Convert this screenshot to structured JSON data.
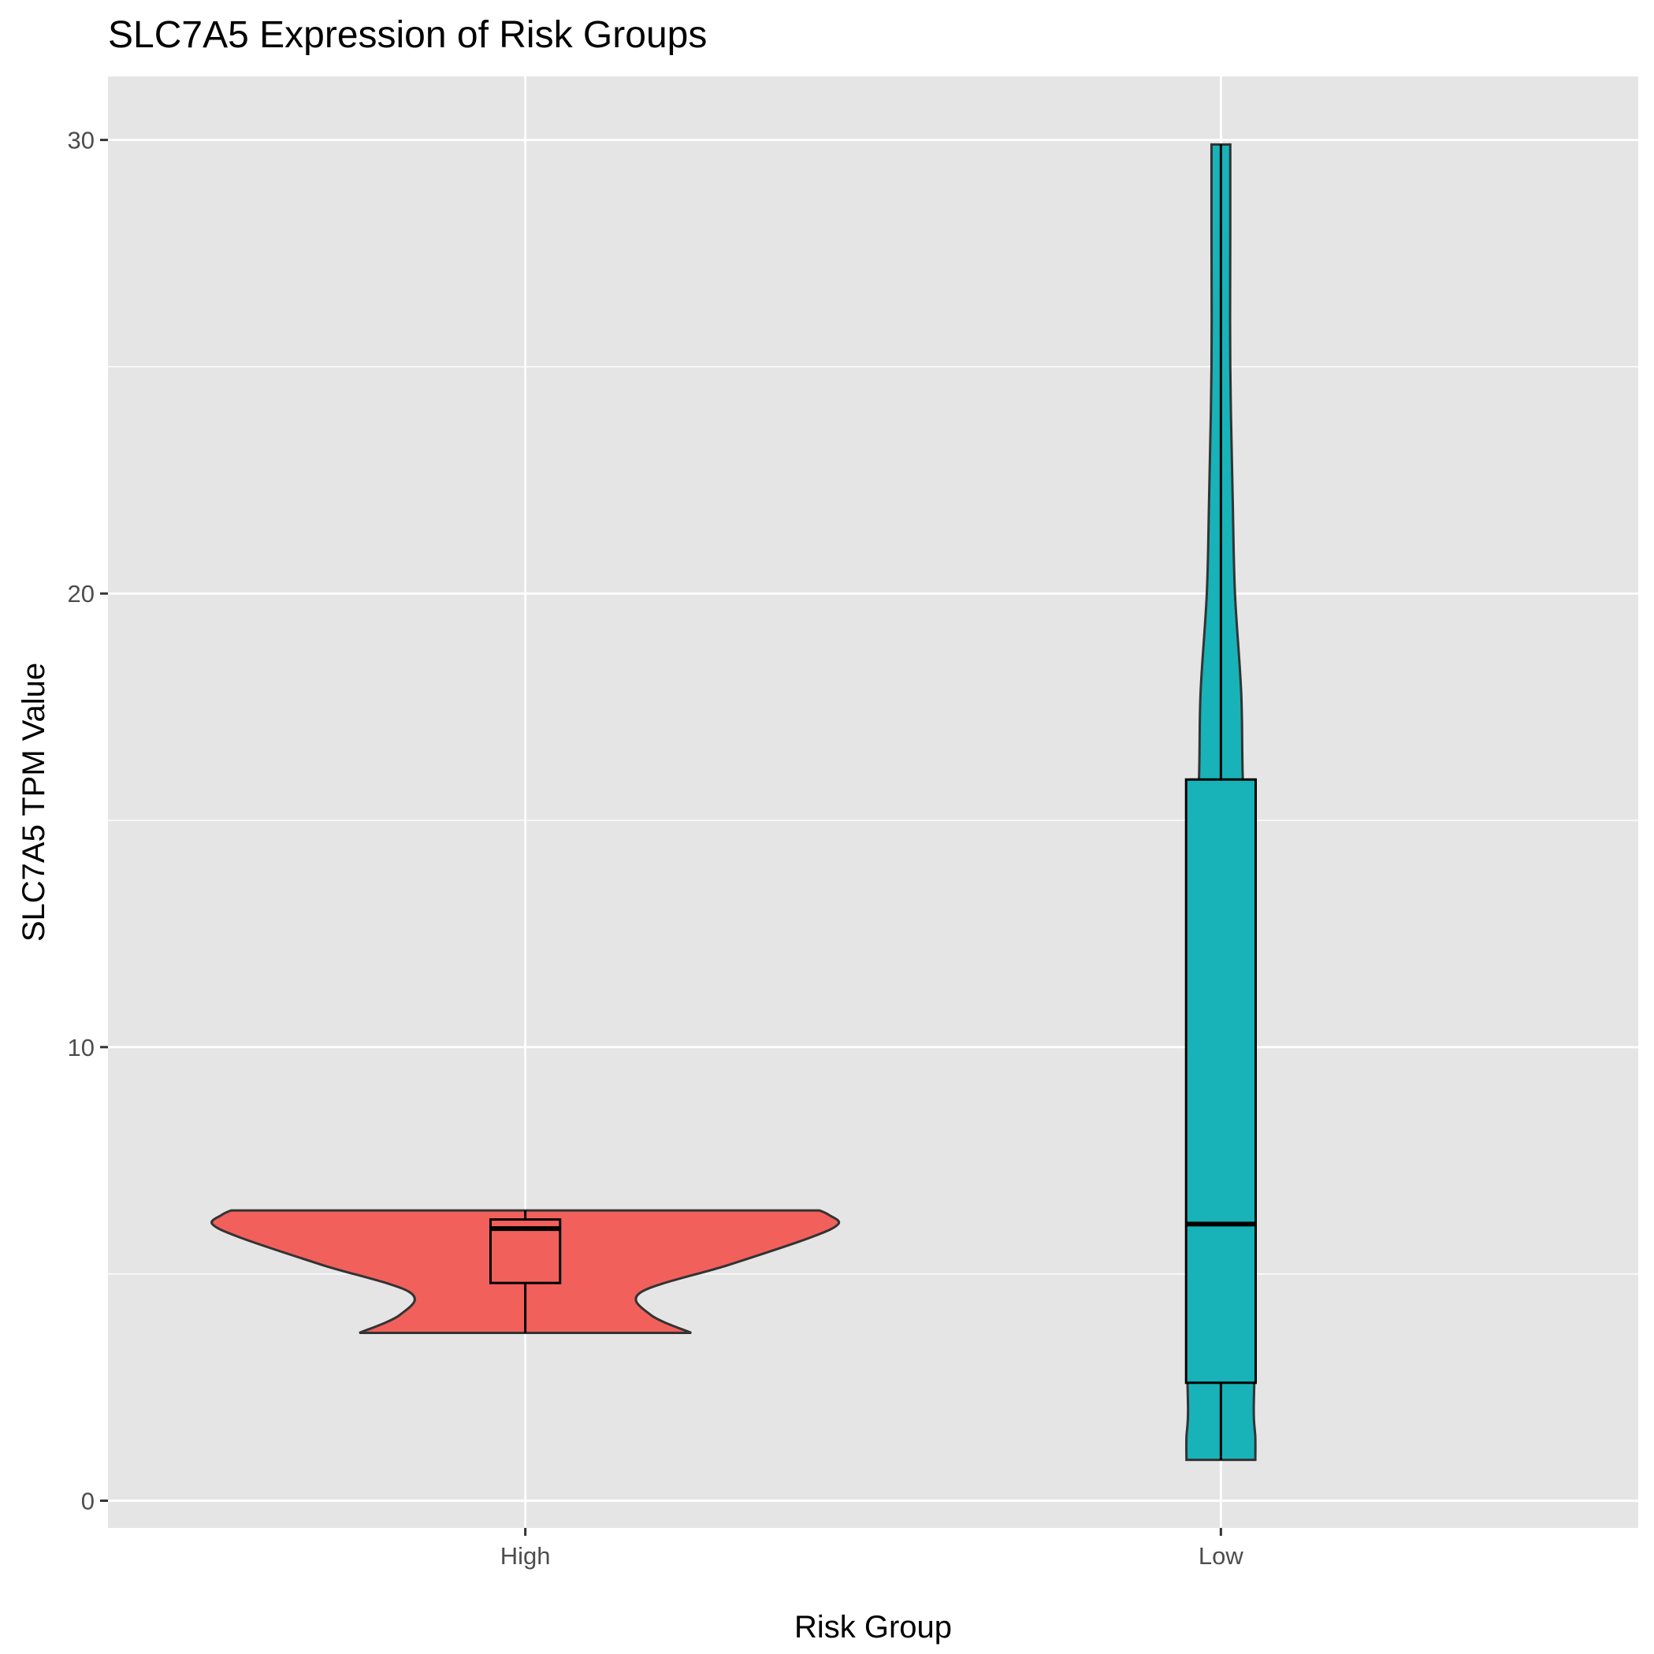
{
  "chart_data": {
    "type": "violin",
    "title": "SLC7A5 Expression of Risk Groups",
    "xlabel": "Risk Group",
    "ylabel": "SLC7A5 TPM Value",
    "ylim": [
      -0.6,
      31.4
    ],
    "yticks": [
      0,
      10,
      20,
      30
    ],
    "categories": [
      "High",
      "Low"
    ],
    "grid": true,
    "legend": "none",
    "background": "#e5e5e5",
    "gridline_color": "#ffffff",
    "outline_color": "#333333",
    "groups": [
      {
        "name": "High",
        "color": "#f2605c",
        "min": 3.7,
        "q1": 4.8,
        "median": 6.0,
        "q3": 6.2,
        "max": 6.4,
        "density": [
          [
            3.7,
            0.53
          ],
          [
            4.1,
            0.4
          ],
          [
            4.6,
            0.37
          ],
          [
            5.2,
            0.65
          ],
          [
            5.8,
            0.91
          ],
          [
            6.1,
            1.0
          ],
          [
            6.3,
            0.97
          ],
          [
            6.4,
            0.94
          ]
        ]
      },
      {
        "name": "Low",
        "color": "#17b3b8",
        "min": 0.9,
        "q1": 2.6,
        "median": 6.1,
        "q3": 15.9,
        "max": 29.9,
        "density": [
          [
            0.9,
            0.11
          ],
          [
            1.4,
            0.11
          ],
          [
            2.0,
            0.105
          ],
          [
            3.7,
            0.11
          ],
          [
            5.5,
            0.105
          ],
          [
            7.3,
            0.095
          ],
          [
            10.0,
            0.09
          ],
          [
            13.0,
            0.085
          ],
          [
            15.9,
            0.07
          ],
          [
            17.8,
            0.065
          ],
          [
            20.0,
            0.045
          ],
          [
            22.0,
            0.038
          ],
          [
            25.0,
            0.03
          ],
          [
            28.0,
            0.03
          ],
          [
            29.9,
            0.03
          ]
        ]
      }
    ]
  }
}
